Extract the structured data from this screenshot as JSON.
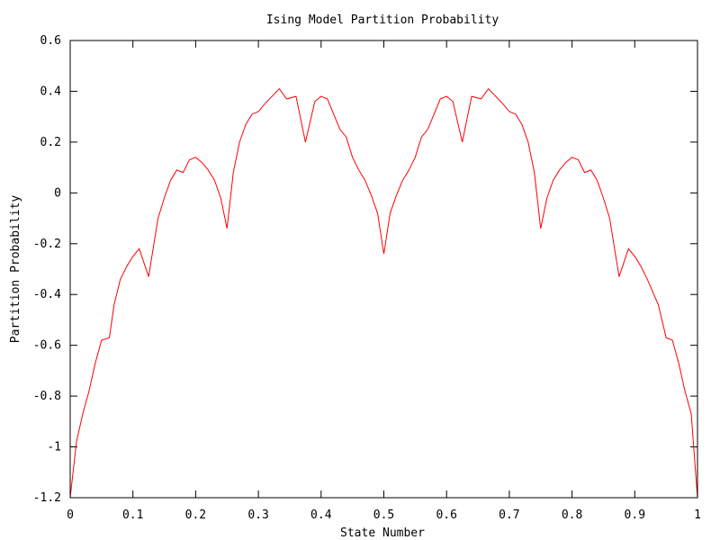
{
  "chart_data": {
    "type": "line",
    "title": "Ising Model Partition Probability",
    "xlabel": "State Number",
    "ylabel": "Partition Probability",
    "xlim": [
      0,
      1
    ],
    "ylim": [
      -1.2,
      0.6
    ],
    "xticks": [
      0,
      0.1,
      0.2,
      0.3,
      0.4,
      0.5,
      0.6,
      0.7,
      0.8,
      0.9,
      1
    ],
    "xtick_labels": [
      "0",
      "0.1",
      "0.2",
      "0.3",
      "0.4",
      "0.5",
      "0.6",
      "0.7",
      "0.8",
      "0.9",
      "1"
    ],
    "yticks": [
      -1.2,
      -1,
      -0.8,
      -0.6,
      -0.4,
      -0.2,
      0,
      0.2,
      0.4,
      0.6
    ],
    "ytick_labels": [
      "-1.2",
      "-1",
      "-0.8",
      "-0.6",
      "-0.4",
      "-0.2",
      "0",
      "0.2",
      "0.4",
      "0.6"
    ],
    "grid": false,
    "line_color": "#ff0000",
    "series": [
      {
        "x": [
          0,
          0.01,
          0.02,
          0.03,
          0.04,
          0.05,
          0.0625,
          0.07,
          0.08,
          0.09,
          0.1,
          0.11,
          0.125,
          0.14,
          0.15,
          0.16,
          0.17,
          0.18,
          0.19,
          0.2,
          0.21,
          0.22,
          0.23,
          0.24,
          0.25,
          0.26,
          0.27,
          0.28,
          0.29,
          0.3,
          0.31,
          0.3333,
          0.345,
          0.36,
          0.375,
          0.39,
          0.4,
          0.41,
          0.42,
          0.43,
          0.44,
          0.45,
          0.46,
          0.47,
          0.48,
          0.49,
          0.5,
          0.51,
          0.52,
          0.53,
          0.54,
          0.55,
          0.56,
          0.57,
          0.58,
          0.59,
          0.6,
          0.61,
          0.625,
          0.64,
          0.655,
          0.6667,
          0.69,
          0.7,
          0.71,
          0.72,
          0.73,
          0.74,
          0.75,
          0.76,
          0.77,
          0.78,
          0.79,
          0.8,
          0.81,
          0.82,
          0.83,
          0.84,
          0.85,
          0.86,
          0.875,
          0.89,
          0.9,
          0.91,
          0.92,
          0.9375,
          0.95,
          0.96,
          0.97,
          0.98,
          0.99,
          1
        ],
        "y": [
          -1.2,
          -0.98,
          -0.87,
          -0.78,
          -0.67,
          -0.58,
          -0.57,
          -0.44,
          -0.34,
          -0.29,
          -0.25,
          -0.22,
          -0.33,
          -0.1,
          -0.02,
          0.05,
          0.09,
          0.08,
          0.13,
          0.14,
          0.12,
          0.09,
          0.05,
          -0.02,
          -0.14,
          0.08,
          0.2,
          0.27,
          0.31,
          0.32,
          0.35,
          0.41,
          0.37,
          0.38,
          0.2,
          0.36,
          0.38,
          0.37,
          0.31,
          0.25,
          0.22,
          0.14,
          0.09,
          0.05,
          -0.01,
          -0.08,
          -0.24,
          -0.08,
          -0.01,
          0.05,
          0.09,
          0.14,
          0.22,
          0.25,
          0.31,
          0.37,
          0.38,
          0.36,
          0.2,
          0.38,
          0.37,
          0.41,
          0.35,
          0.32,
          0.31,
          0.27,
          0.2,
          0.08,
          -0.14,
          -0.02,
          0.05,
          0.09,
          0.12,
          0.14,
          0.13,
          0.08,
          0.09,
          0.05,
          -0.02,
          -0.1,
          -0.33,
          -0.22,
          -0.25,
          -0.29,
          -0.34,
          -0.44,
          -0.57,
          -0.58,
          -0.67,
          -0.78,
          -0.87,
          -1.2
        ]
      }
    ]
  }
}
